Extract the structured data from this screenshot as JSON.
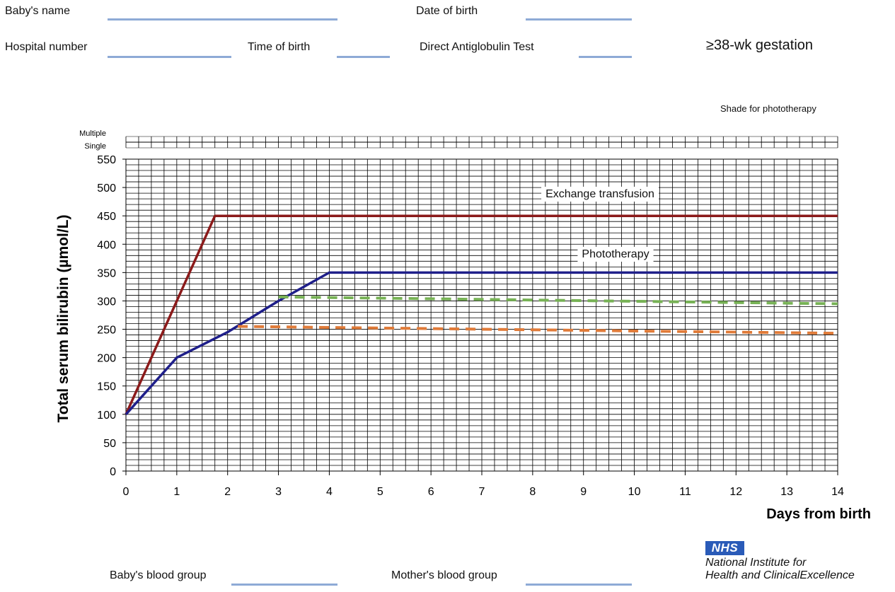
{
  "form": {
    "babys_name_label": "Baby's name",
    "date_of_birth_label": "Date of birth",
    "hospital_number_label": "Hospital number",
    "time_of_birth_label": "Time of birth",
    "dat_label": "Direct Antiglobulin Test",
    "gestation": "≥38-wk gestation",
    "shade_label": "Shade for phototherapy",
    "babys_blood_group_label": "Baby's blood group",
    "mothers_blood_group_label": "Mother's blood group"
  },
  "footer": {
    "nhs_logo": "NHS",
    "org_line1": "National Institute for",
    "org_line2": "Health and ClinicalExcellence"
  },
  "colors": {
    "exchange": "#8b1a1a",
    "phototherapy": "#1f1f8a",
    "green_dash": "#77b255",
    "orange_dash": "#e07b39",
    "field_line": "#8eaad6",
    "nhs_blue": "#2a5bb8"
  },
  "chart_data": {
    "type": "line",
    "xlabel": "Days from birth",
    "ylabel": "Total serum bilirubin (µmol/L)",
    "xlim": [
      0,
      14
    ],
    "ylim": [
      0,
      550
    ],
    "x_ticks": [
      0,
      1,
      2,
      3,
      4,
      5,
      6,
      7,
      8,
      9,
      10,
      11,
      12,
      13,
      14
    ],
    "y_ticks": [
      0,
      50,
      100,
      150,
      200,
      250,
      300,
      350,
      400,
      450,
      500,
      550
    ],
    "grid": true,
    "shade_rows": [
      "Multiple",
      "Single"
    ],
    "series": [
      {
        "name": "Exchange transfusion",
        "color": "#8b1a1a",
        "dash": false,
        "points": [
          [
            0,
            100
          ],
          [
            1,
            300
          ],
          [
            1.75,
            450
          ],
          [
            14,
            450
          ]
        ]
      },
      {
        "name": "Phototherapy",
        "color": "#1f1f8a",
        "dash": false,
        "points": [
          [
            0,
            100
          ],
          [
            1,
            200
          ],
          [
            2,
            245
          ],
          [
            3,
            300
          ],
          [
            4,
            350
          ],
          [
            14,
            350
          ]
        ]
      },
      {
        "color": "#77b255",
        "dash": true,
        "points": [
          [
            3,
            307
          ],
          [
            14,
            295
          ]
        ]
      },
      {
        "color": "#e07b39",
        "dash": true,
        "points": [
          [
            2.2,
            255
          ],
          [
            14,
            243
          ]
        ]
      }
    ]
  }
}
